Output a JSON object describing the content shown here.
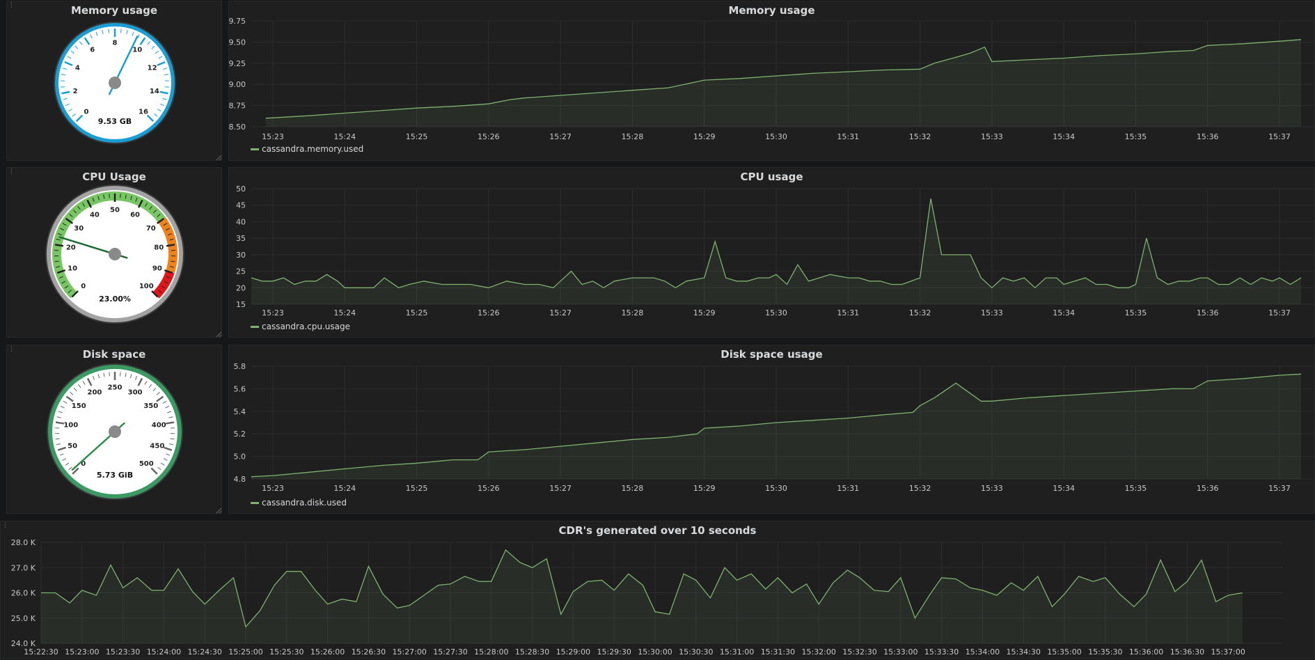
{
  "gauges": [
    {
      "id": "memory",
      "title": "Memory usage",
      "value_text": "9.53 GB",
      "value": 9.53,
      "min": 0,
      "max": 16,
      "labels": [
        "0",
        "2",
        "4",
        "6",
        "8",
        "10",
        "12",
        "14",
        "16"
      ],
      "ring_color": "#1a9cd4",
      "bands": []
    },
    {
      "id": "cpu",
      "title": "CPU Usage",
      "value_text": "23.00%",
      "value": 23,
      "min": 0,
      "max": 100,
      "labels": [
        "0",
        "10",
        "20",
        "30",
        "40",
        "50",
        "60",
        "70",
        "80",
        "90",
        "100"
      ],
      "ring_color": "#a3a3a3",
      "bands": [
        {
          "from": 0,
          "to": 70,
          "color": "#77c663"
        },
        {
          "from": 70,
          "to": 90,
          "color": "#f0821e"
        },
        {
          "from": 90,
          "to": 100,
          "color": "#e0161a"
        }
      ]
    },
    {
      "id": "disk",
      "title": "Disk space",
      "value_text": "5.73 GiB",
      "value": 5.73,
      "min": 0,
      "max": 500,
      "labels": [
        "0",
        "50",
        "100",
        "150",
        "200",
        "250",
        "300",
        "350",
        "400",
        "450",
        "500"
      ],
      "ring_color": "#3a9a62",
      "bands": []
    }
  ],
  "chart_data": [
    {
      "id": "memory",
      "type": "area",
      "title": "Memory usage",
      "ylim": [
        8.5,
        9.75
      ],
      "yticks": [
        "8.50",
        "8.75",
        "9.00",
        "9.25",
        "9.50",
        "9.75"
      ],
      "xlim": [
        15.7,
        30.3
      ],
      "xticks": [
        "15:23",
        "15:24",
        "15:25",
        "15:26",
        "15:27",
        "15:28",
        "15:29",
        "15:30",
        "15:31",
        "15:32",
        "15:33",
        "15:34",
        "15:35",
        "15:36",
        "15:37"
      ],
      "xtick_pos": [
        16,
        17,
        18,
        19,
        20,
        21,
        22,
        23,
        24,
        25,
        26,
        27,
        28,
        29,
        30
      ],
      "series": [
        {
          "name": "cassandra.memory.used",
          "color": "#7eb26d",
          "x": [
            15.9,
            16.5,
            17.0,
            17.5,
            18.0,
            18.5,
            19.0,
            19.3,
            19.5,
            20.0,
            20.5,
            21.0,
            21.5,
            22.0,
            22.5,
            23.0,
            23.5,
            24.0,
            24.5,
            25.0,
            25.2,
            25.5,
            25.7,
            25.9,
            26.0,
            26.5,
            27.0,
            27.5,
            28.0,
            28.5,
            28.8,
            29.0,
            29.5,
            30.0,
            30.3
          ],
          "values": [
            8.6,
            8.63,
            8.66,
            8.69,
            8.72,
            8.74,
            8.77,
            8.82,
            8.84,
            8.87,
            8.9,
            8.93,
            8.96,
            9.05,
            9.07,
            9.1,
            9.13,
            9.15,
            9.17,
            9.18,
            9.25,
            9.32,
            9.37,
            9.44,
            9.27,
            9.29,
            9.31,
            9.34,
            9.36,
            9.39,
            9.4,
            9.46,
            9.48,
            9.51,
            9.53
          ]
        }
      ]
    },
    {
      "id": "cpu",
      "type": "area",
      "title": "CPU usage",
      "ylim": [
        15,
        50
      ],
      "yticks": [
        "15",
        "20",
        "25",
        "30",
        "35",
        "40",
        "45",
        "50"
      ],
      "xlim": [
        15.7,
        30.3
      ],
      "xticks": [
        "15:23",
        "15:24",
        "15:25",
        "15:26",
        "15:27",
        "15:28",
        "15:29",
        "15:30",
        "15:31",
        "15:32",
        "15:33",
        "15:34",
        "15:35",
        "15:36",
        "15:37"
      ],
      "xtick_pos": [
        16,
        17,
        18,
        19,
        20,
        21,
        22,
        23,
        24,
        25,
        26,
        27,
        28,
        29,
        30
      ],
      "series": [
        {
          "name": "cassandra.cpu.usage",
          "color": "#7eb26d",
          "x": [
            15.7,
            15.85,
            16.0,
            16.15,
            16.3,
            16.45,
            16.6,
            16.75,
            16.9,
            17.0,
            17.25,
            17.4,
            17.55,
            17.75,
            17.9,
            18.1,
            18.35,
            18.5,
            18.75,
            19.0,
            19.25,
            19.5,
            19.7,
            19.9,
            20.0,
            20.15,
            20.3,
            20.45,
            20.6,
            20.75,
            21.0,
            21.15,
            21.3,
            21.45,
            21.6,
            21.75,
            22.0,
            22.15,
            22.3,
            22.45,
            22.6,
            22.75,
            22.9,
            23.0,
            23.15,
            23.3,
            23.45,
            23.6,
            23.75,
            24.0,
            24.15,
            24.3,
            24.45,
            24.6,
            24.75,
            25.0,
            25.15,
            25.3,
            25.5,
            25.7,
            25.85,
            26.0,
            26.15,
            26.3,
            26.45,
            26.6,
            26.75,
            26.9,
            27.0,
            27.15,
            27.3,
            27.45,
            27.6,
            27.75,
            27.9,
            28.0,
            28.15,
            28.3,
            28.45,
            28.6,
            28.75,
            28.9,
            29.0,
            29.15,
            29.3,
            29.45,
            29.6,
            29.75,
            29.9,
            30.0,
            30.15,
            30.3
          ],
          "values": [
            23,
            22,
            22,
            23,
            21,
            22,
            22,
            24,
            22,
            20,
            20,
            20,
            23,
            20,
            21,
            22,
            21,
            21,
            21,
            20,
            22,
            21,
            21,
            20,
            22,
            25,
            21,
            22,
            20,
            22,
            23,
            23,
            23,
            22,
            20,
            22,
            23,
            34,
            23,
            22,
            22,
            23,
            23,
            24,
            21,
            27,
            22,
            23,
            24,
            23,
            23,
            22,
            22,
            21,
            21,
            23,
            47,
            30,
            30,
            30,
            23,
            20,
            23,
            22,
            23,
            20,
            23,
            23,
            21,
            22,
            23,
            21,
            21,
            20,
            20,
            21,
            35,
            23,
            21,
            22,
            22,
            23,
            23,
            21,
            21,
            23,
            21,
            23,
            22,
            23,
            21,
            23
          ]
        }
      ]
    },
    {
      "id": "disk",
      "type": "area",
      "title": "Disk space usage",
      "ylim": [
        4.8,
        5.8
      ],
      "yticks": [
        "4.8",
        "5.0",
        "5.2",
        "5.4",
        "5.6",
        "5.8"
      ],
      "xlim": [
        15.7,
        30.3
      ],
      "xticks": [
        "15:23",
        "15:24",
        "15:25",
        "15:26",
        "15:27",
        "15:28",
        "15:29",
        "15:30",
        "15:31",
        "15:32",
        "15:33",
        "15:34",
        "15:35",
        "15:36",
        "15:37"
      ],
      "xtick_pos": [
        16,
        17,
        18,
        19,
        20,
        21,
        22,
        23,
        24,
        25,
        26,
        27,
        28,
        29,
        30
      ],
      "series": [
        {
          "name": "cassandra.disk.used",
          "color": "#7eb26d",
          "x": [
            15.7,
            16.0,
            16.5,
            17.0,
            17.5,
            18.0,
            18.5,
            18.85,
            19.0,
            19.5,
            20.0,
            20.5,
            21.0,
            21.5,
            21.9,
            22.0,
            22.5,
            23.0,
            23.5,
            24.0,
            24.5,
            24.9,
            25.0,
            25.2,
            25.5,
            25.85,
            26.0,
            26.5,
            27.0,
            27.5,
            28.0,
            28.5,
            28.8,
            29.0,
            29.5,
            30.0,
            30.3
          ],
          "values": [
            4.82,
            4.83,
            4.86,
            4.89,
            4.92,
            4.94,
            4.97,
            4.97,
            5.04,
            5.06,
            5.09,
            5.12,
            5.15,
            5.17,
            5.2,
            5.25,
            5.27,
            5.3,
            5.32,
            5.34,
            5.37,
            5.39,
            5.45,
            5.52,
            5.65,
            5.49,
            5.49,
            5.52,
            5.54,
            5.56,
            5.58,
            5.6,
            5.6,
            5.67,
            5.69,
            5.72,
            5.73
          ]
        }
      ]
    },
    {
      "id": "cdr",
      "type": "area",
      "title": "CDR's generated over 10 seconds",
      "ylim": [
        24000,
        28000
      ],
      "yticks": [
        "24.0 K",
        "25.0 K",
        "26.0 K",
        "27.0 K",
        "28.0 K"
      ],
      "xlim": [
        0,
        60
      ],
      "xticks": [
        "15:22:30",
        "15:23:00",
        "15:23:30",
        "15:24:00",
        "15:24:30",
        "15:25:00",
        "15:25:30",
        "15:26:00",
        "15:26:30",
        "15:27:00",
        "15:27:30",
        "15:28:00",
        "15:28:30",
        "15:29:00",
        "15:29:30",
        "15:30:00",
        "15:30:30",
        "15:31:00",
        "15:31:30",
        "15:32:00",
        "15:32:30",
        "15:33:00",
        "15:33:30",
        "15:34:00",
        "15:34:30",
        "15:35:00",
        "15:35:30",
        "15:36:00",
        "15:36:30",
        "15:37:00"
      ],
      "xtick_pos": [
        0,
        2,
        4,
        6,
        8,
        10,
        12,
        14,
        16,
        18,
        20,
        22,
        24,
        26,
        28,
        30,
        32,
        34,
        36,
        38,
        40,
        42,
        44,
        46,
        48,
        50,
        52,
        54,
        56,
        58
      ],
      "series": [
        {
          "name": "",
          "color": "#7eb26d",
          "x": [
            0,
            0.7,
            1.4,
            2.0,
            2.7,
            3.4,
            4.0,
            4.7,
            5.4,
            6.0,
            6.7,
            7.4,
            8.0,
            8.7,
            9.4,
            10.0,
            10.7,
            11.4,
            12.0,
            12.7,
            13.4,
            14.0,
            14.7,
            15.4,
            16.0,
            16.7,
            17.4,
            18.0,
            18.7,
            19.4,
            20.0,
            20.7,
            21.4,
            22.0,
            22.7,
            23.4,
            24.0,
            24.7,
            25.4,
            26.0,
            26.7,
            27.4,
            28.0,
            28.7,
            29.4,
            30.0,
            30.7,
            31.4,
            32.0,
            32.7,
            33.4,
            34.0,
            34.7,
            35.4,
            36.0,
            36.7,
            37.4,
            38.0,
            38.7,
            39.4,
            40.0,
            40.7,
            41.4,
            42.0,
            42.7,
            43.4,
            44.0,
            44.7,
            45.4,
            46.0,
            46.7,
            47.4,
            48.0,
            48.7,
            49.4,
            50.0,
            50.7,
            51.4,
            52.0,
            52.7,
            53.4,
            54.0,
            54.7,
            55.4,
            56.0,
            56.7,
            57.4,
            58.0,
            58.7
          ],
          "values": [
            26000,
            26000,
            25600,
            26100,
            25900,
            27100,
            26200,
            26600,
            26100,
            26100,
            26950,
            26050,
            25550,
            26100,
            26600,
            24650,
            25300,
            26300,
            26850,
            26850,
            26100,
            25550,
            25750,
            25650,
            27050,
            25950,
            25400,
            25500,
            25900,
            26300,
            26350,
            26650,
            26450,
            26450,
            27700,
            27200,
            27000,
            27350,
            25150,
            26050,
            26450,
            26500,
            26100,
            26750,
            26300,
            25250,
            25150,
            26750,
            26500,
            25800,
            27000,
            26500,
            26750,
            26150,
            26600,
            26000,
            26350,
            25550,
            26400,
            26900,
            26600,
            26100,
            26050,
            26600,
            25000,
            25900,
            26600,
            26550,
            26200,
            26100,
            25900,
            26400,
            26100,
            26650,
            25450,
            25950,
            26650,
            26450,
            26600,
            25950,
            25450,
            25950,
            27300,
            26050,
            26450,
            27300,
            25650,
            25900,
            26000
          ]
        }
      ]
    }
  ]
}
